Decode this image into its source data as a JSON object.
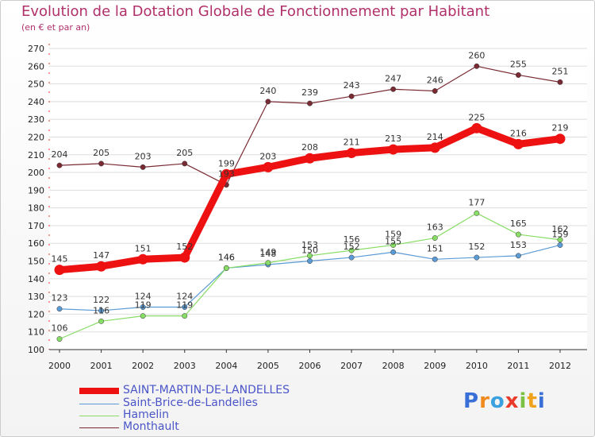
{
  "title": "Evolution de la Dotation Globale de Fonctionnement par Habitant",
  "subtitle": "(en € et par an)",
  "logo": "Proxiti",
  "chart_data": {
    "type": "line",
    "x": [
      "2000",
      "2001",
      "2002",
      "2003",
      "2004",
      "2005",
      "2006",
      "2007",
      "2008",
      "2009",
      "2010",
      "2011",
      "2012"
    ],
    "ylim": [
      100,
      270
    ],
    "yticks": [
      100,
      110,
      120,
      130,
      140,
      150,
      160,
      170,
      180,
      190,
      200,
      210,
      220,
      230,
      240,
      250,
      260,
      270
    ],
    "grid": "horizontal",
    "legend_position": "bottom-left",
    "series": [
      {
        "name": "SAINT-MARTIN-DE-LANDELLES",
        "color": "#ee1111",
        "values": [
          145,
          147,
          151,
          152,
          199,
          203,
          208,
          211,
          213,
          214,
          225,
          216,
          219
        ]
      },
      {
        "name": "Saint-Brice-de-Landelles",
        "color": "#5b9bd5",
        "values": [
          123,
          122,
          124,
          124,
          146,
          148,
          150,
          152,
          155,
          151,
          152,
          153,
          159
        ]
      },
      {
        "name": "Hamelin",
        "color": "#88dd66",
        "values": [
          106,
          116,
          119,
          119,
          146,
          149,
          153,
          156,
          159,
          163,
          177,
          165,
          162
        ]
      },
      {
        "name": "Monthault",
        "color": "#7a2a33",
        "values": [
          204,
          205,
          203,
          205,
          193,
          240,
          239,
          243,
          247,
          246,
          260,
          255,
          251
        ]
      }
    ]
  }
}
